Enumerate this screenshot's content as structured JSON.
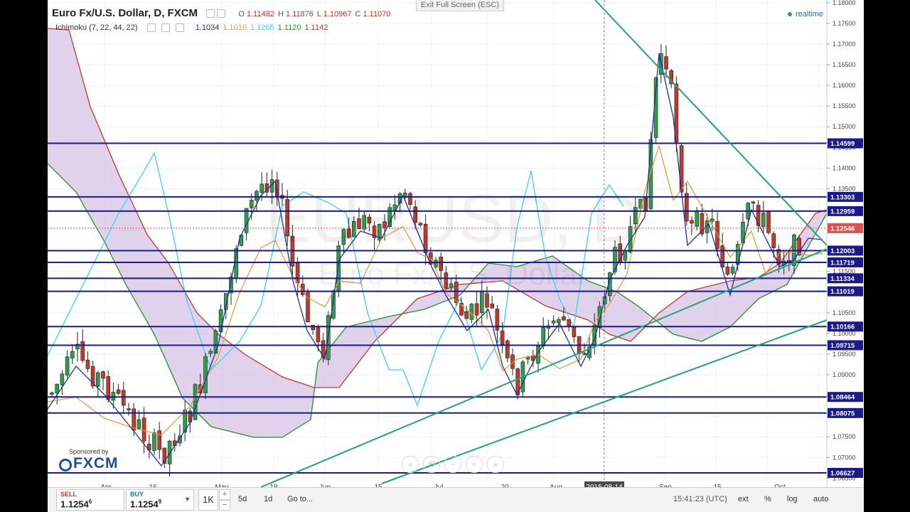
{
  "header": {
    "symbol": "Euro Fx/U.S. Dollar, D, FXCM",
    "ohlc": [
      {
        "key": "O",
        "value": "1.11482"
      },
      {
        "key": "H",
        "value": "1.11876"
      },
      {
        "key": "L",
        "value": "1.10967"
      },
      {
        "key": "C",
        "value": "1.11070"
      }
    ],
    "indicator_name": "Ichimoku (7, 22, 44, 22)",
    "indicator_values": [
      {
        "value": "1.1034",
        "color": "#1f2fa0"
      },
      {
        "value": "1.1010",
        "color": "#e39a2a"
      },
      {
        "value": "1.1265",
        "color": "#3bd3f0"
      },
      {
        "value": "1.1120",
        "color": "#2e8b2e"
      },
      {
        "value": "1.1142",
        "color": "#c0392b"
      }
    ],
    "exit_fullscreen": "Exit Full Screen (ESC)",
    "realtime": "realtime"
  },
  "watermark": {
    "symbol": "EURUSD, D",
    "name": "Euro Fx/U.S. Dollar"
  },
  "chart_data": {
    "type": "candlestick",
    "y_axis_ticks": [
      "1.18000",
      "1.17500",
      "1.17000",
      "1.16500",
      "1.16000",
      "1.15500",
      "1.15000",
      "1.14500",
      "1.14000",
      "1.13500",
      "1.13000",
      "1.12500",
      "1.12000",
      "1.11500",
      "1.11000",
      "1.10500",
      "1.10000",
      "1.09500",
      "1.09000",
      "1.08500",
      "1.08000",
      "1.07500",
      "1.07000",
      "1.06500"
    ],
    "x_axis_labels": [
      "Apr",
      "16",
      "May",
      "18",
      "Jun",
      "15",
      "Jul",
      "20",
      "Aug",
      "Sep",
      "15",
      "Oct"
    ],
    "crosshair_date": "2015-08-14",
    "ylim": [
      1.063,
      1.181
    ],
    "horizontal_levels": [
      "1.14599",
      "1.13303",
      "1.12959",
      "1.12003",
      "1.11719",
      "1.11334",
      "1.11019",
      "1.10166",
      "1.09715",
      "1.08464",
      "1.08075",
      "1.06627"
    ],
    "last_price": "1.12546",
    "colors": {
      "up": "#2e9e4a",
      "down": "#c0392b",
      "level_line": "#1a1a8c",
      "trend_line": "#1fa57d",
      "cloud": "#d8c7e6",
      "tenkan": "#1f2fa0",
      "kijun": "#e39a2a",
      "chikou": "#3bd3f0",
      "senkou_a": "#2e8b2e",
      "senkou_b": "#c0392b",
      "last_price": "#d9534f"
    }
  },
  "bottom": {
    "sell_label": "SELL",
    "sell_price": "1.1254",
    "sell_pip": "6",
    "buy_label": "BUY",
    "buy_price": "1.1254",
    "buy_pip": "9",
    "quantity": "1K",
    "plus": "+",
    "minus": "−",
    "timeframe": "5d",
    "timeframe2": "1d",
    "goto": "Go to...",
    "clock": "15:41:23 (UTC)",
    "ext": "ext",
    "pct": "%",
    "log": "log",
    "auto": "auto"
  },
  "brand": {
    "sponsored": "Sponsored by",
    "name": "FXCM"
  }
}
